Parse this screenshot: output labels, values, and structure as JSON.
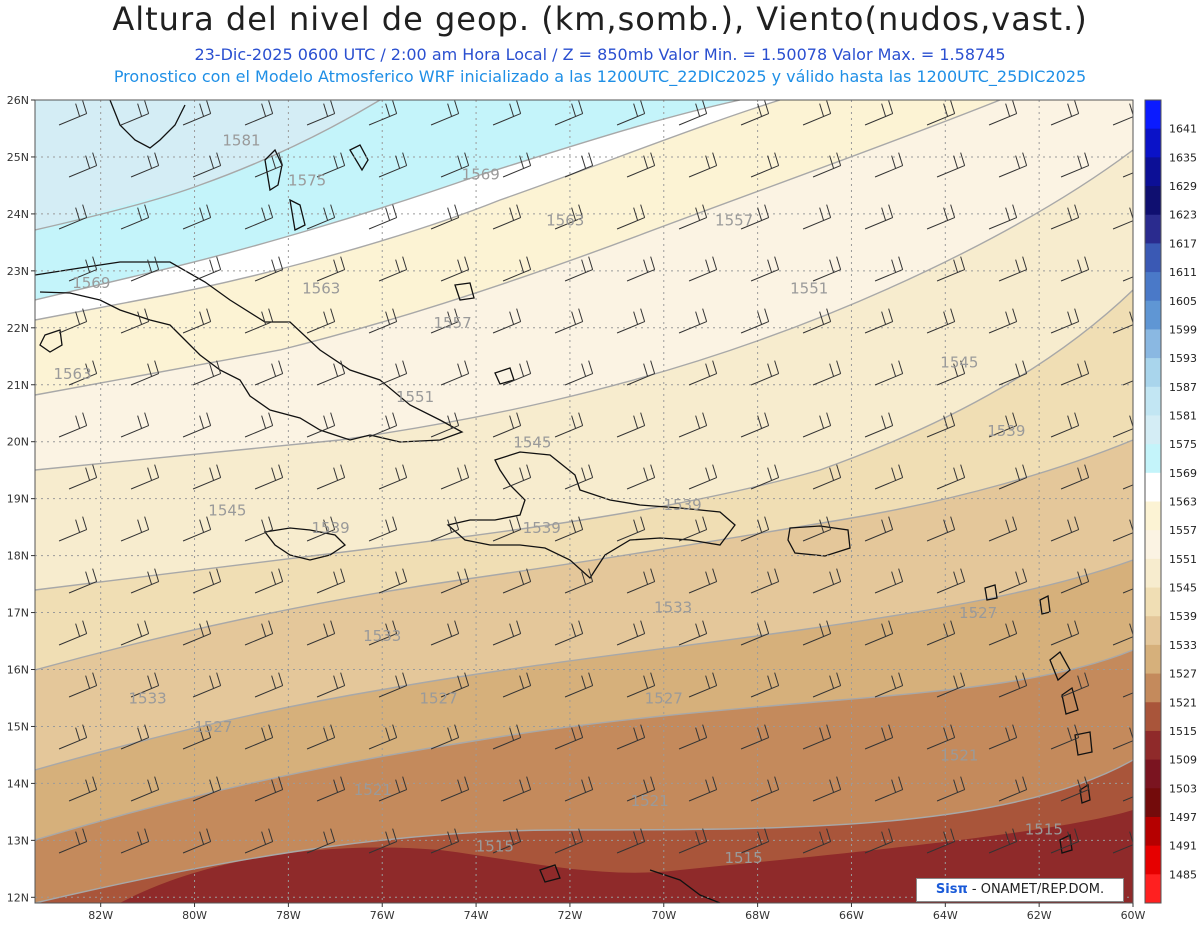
{
  "header": {
    "title": "Altura del nivel de geop. (km,somb.), Viento(nudos,vast.)",
    "subtitle1": "23-Dic-2025   0600 UTC / 2:00 am Hora Local / Z = 850mb     Valor Min. = 1.50078   Valor Max. = 1.58745",
    "subtitle2": "Pronostico con el Modelo Atmosferico WRF inicializado a las 1200UTC_22DIC2025 y válido hasta las  1200UTC_25DIC2025"
  },
  "map": {
    "lat_labels": [
      "26N",
      "25N",
      "24N",
      "23N",
      "22N",
      "21N",
      "20N",
      "19N",
      "18N",
      "17N",
      "16N",
      "15N",
      "14N",
      "13N",
      "12N"
    ],
    "lon_labels": [
      "82W",
      "80W",
      "78W",
      "76W",
      "74W",
      "72W",
      "70W",
      "68W",
      "66W",
      "64W",
      "62W",
      "60W"
    ],
    "lat_values": [
      26,
      25,
      24,
      23,
      22,
      21,
      20,
      19,
      18,
      17,
      16,
      15,
      14,
      13,
      12
    ],
    "lon_values": [
      82,
      80,
      78,
      76,
      74,
      72,
      70,
      68,
      66,
      64,
      62,
      60
    ],
    "contour_labels": [
      {
        "text": "1581",
        "lon": -79.0,
        "lat": 25.2
      },
      {
        "text": "1575",
        "lon": -77.6,
        "lat": 24.5
      },
      {
        "text": "1569",
        "lon": -73.9,
        "lat": 24.6
      },
      {
        "text": "1563",
        "lon": -72.1,
        "lat": 23.8
      },
      {
        "text": "1557",
        "lon": -68.5,
        "lat": 23.8
      },
      {
        "text": "1569",
        "lon": -82.2,
        "lat": 22.7
      },
      {
        "text": "1563",
        "lon": -77.3,
        "lat": 22.6
      },
      {
        "text": "1551",
        "lon": -66.9,
        "lat": 22.6
      },
      {
        "text": "1557",
        "lon": -74.5,
        "lat": 22.0
      },
      {
        "text": "1563",
        "lon": -82.6,
        "lat": 21.1
      },
      {
        "text": "1545",
        "lon": -63.7,
        "lat": 21.3
      },
      {
        "text": "1551",
        "lon": -75.3,
        "lat": 20.7
      },
      {
        "text": "1545",
        "lon": -72.8,
        "lat": 19.9
      },
      {
        "text": "1539",
        "lon": -62.7,
        "lat": 20.1
      },
      {
        "text": "1545",
        "lon": -79.3,
        "lat": 18.7
      },
      {
        "text": "1539",
        "lon": -77.1,
        "lat": 18.4
      },
      {
        "text": "1539",
        "lon": -72.6,
        "lat": 18.4
      },
      {
        "text": "1539",
        "lon": -69.6,
        "lat": 18.8
      },
      {
        "text": "1533",
        "lon": -69.8,
        "lat": 17.0
      },
      {
        "text": "1527",
        "lon": -63.3,
        "lat": 16.9
      },
      {
        "text": "1533",
        "lon": -76.0,
        "lat": 16.5
      },
      {
        "text": "1533",
        "lon": -81.0,
        "lat": 15.4
      },
      {
        "text": "1527",
        "lon": -74.8,
        "lat": 15.4
      },
      {
        "text": "1527",
        "lon": -70.0,
        "lat": 15.4
      },
      {
        "text": "1527",
        "lon": -79.6,
        "lat": 14.9
      },
      {
        "text": "1521",
        "lon": -63.7,
        "lat": 14.4
      },
      {
        "text": "1521",
        "lon": -76.2,
        "lat": 13.8
      },
      {
        "text": "1521",
        "lon": -70.3,
        "lat": 13.6
      },
      {
        "text": "1515",
        "lon": -73.6,
        "lat": 12.8
      },
      {
        "text": "1515",
        "lon": -68.3,
        "lat": 12.6
      },
      {
        "text": "1515",
        "lon": -61.9,
        "lat": 13.1
      }
    ]
  },
  "colorbar": {
    "levels": [
      {
        "label": "1641",
        "color": "#0b1bff"
      },
      {
        "label": "1635",
        "color": "#0a12c8"
      },
      {
        "label": "1629",
        "color": "#0c0f96"
      },
      {
        "label": "1623",
        "color": "#0f0f70"
      },
      {
        "label": "1617",
        "color": "#2a2b8e"
      },
      {
        "label": "1611",
        "color": "#3a59b4"
      },
      {
        "label": "1605",
        "color": "#4a79c8"
      },
      {
        "label": "1599",
        "color": "#5f96d4"
      },
      {
        "label": "1593",
        "color": "#8ab8e2"
      },
      {
        "label": "1587",
        "color": "#a9d5ec"
      },
      {
        "label": "1581",
        "color": "#c2e6f3"
      },
      {
        "label": "1575",
        "color": "#d4edf5"
      },
      {
        "label": "1569",
        "color": "#c4f4fa"
      },
      {
        "label": "1563",
        "color": "#ffffff"
      },
      {
        "label": "1557",
        "color": "#fcf3d4"
      },
      {
        "label": "1551",
        "color": "#fbf3e3"
      },
      {
        "label": "1545",
        "color": "#f7ecce"
      },
      {
        "label": "1539",
        "color": "#f0deb4"
      },
      {
        "label": "1533",
        "color": "#e4c79a"
      },
      {
        "label": "1527",
        "color": "#d6b07b"
      },
      {
        "label": "1521",
        "color": "#c48a5c"
      },
      {
        "label": "1515",
        "color": "#a9553a"
      },
      {
        "label": "1509",
        "color": "#8f2a2a"
      },
      {
        "label": "1503",
        "color": "#7a1420"
      },
      {
        "label": "1497",
        "color": "#730b0b"
      },
      {
        "label": "1491",
        "color": "#b50000"
      },
      {
        "label": "1485",
        "color": "#e60000"
      },
      {
        "label": "",
        "color": "#ff2020"
      }
    ]
  },
  "credit": {
    "logo": "Sisπ",
    "text": " - ONAMET/REP.DOM."
  }
}
